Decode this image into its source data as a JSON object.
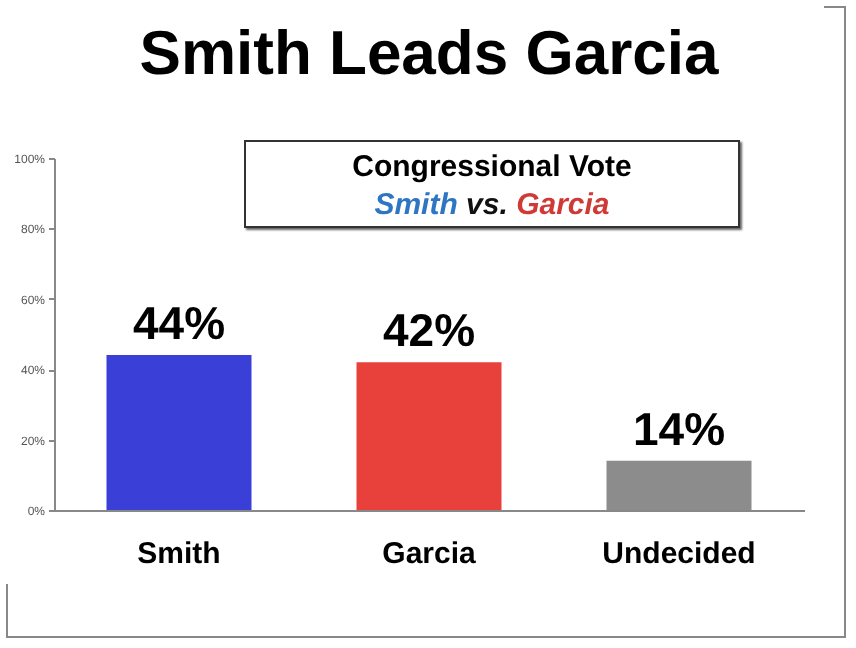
{
  "chart_data": {
    "type": "bar",
    "title": "Smith Leads Garcia",
    "subtitle": "Congressional Vote",
    "annotations": [
      "Smith vs. Garcia"
    ],
    "categories": [
      "Smith",
      "Garcia",
      "Undecided"
    ],
    "values": [
      44,
      42,
      14
    ],
    "colors": [
      "#3a3fd8",
      "#e8403a",
      "#8c8c8c"
    ],
    "value_labels": [
      "44%",
      "42%",
      "14%"
    ],
    "ylim": [
      0,
      100
    ],
    "yticks": [
      {
        "value": 0,
        "label": "0%"
      },
      {
        "value": 20,
        "label": "20%"
      },
      {
        "value": 40,
        "label": "40%"
      },
      {
        "value": 60,
        "label": "60%"
      },
      {
        "value": 80,
        "label": "80%"
      },
      {
        "value": 100,
        "label": "100%"
      }
    ],
    "grid": false
  }
}
